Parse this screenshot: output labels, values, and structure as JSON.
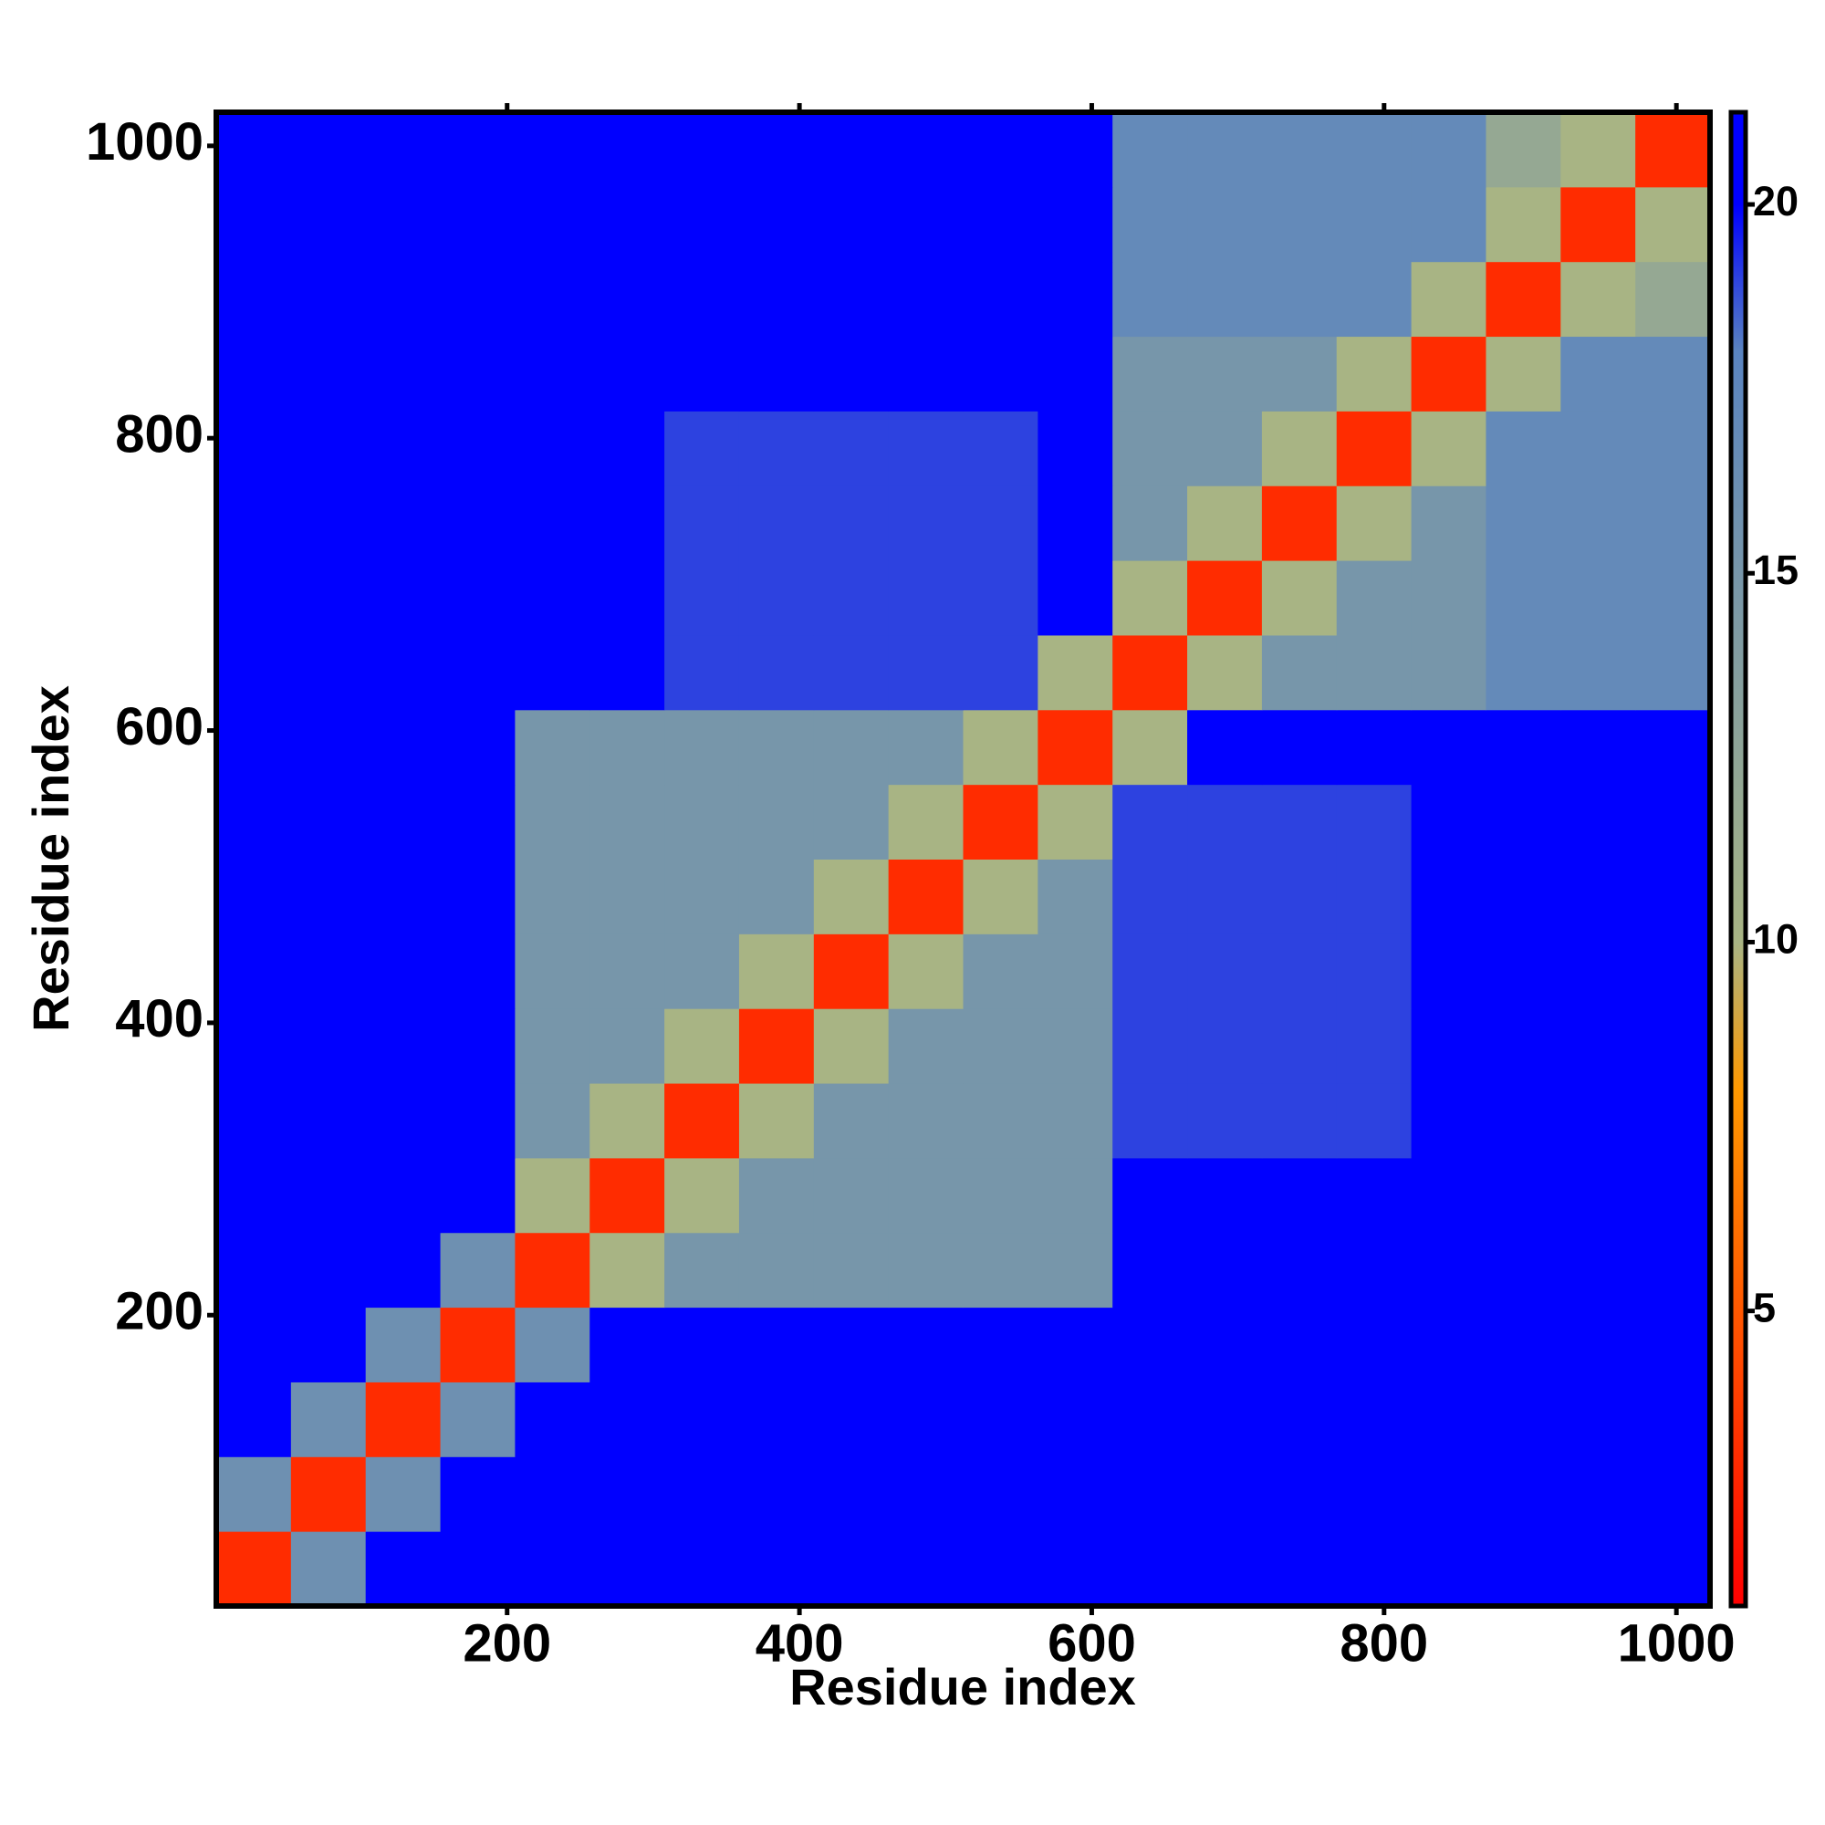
{
  "chart_data": {
    "type": "heatmap",
    "xlabel": "Residue index",
    "ylabel": "Residue index",
    "x_edges": [
      1,
      52.1,
      103.2,
      154.3,
      205.4,
      256.5,
      307.6,
      358.7,
      409.8,
      460.9,
      512,
      563.1,
      614.2,
      665.3,
      716.4,
      767.5,
      818.6,
      869.7,
      920.8,
      971.9,
      1023
    ],
    "y_edges": [
      1,
      52.1,
      103.2,
      154.3,
      205.4,
      256.5,
      307.6,
      358.7,
      409.8,
      460.9,
      512,
      563.1,
      614.2,
      665.3,
      716.4,
      767.5,
      818.6,
      869.7,
      920.8,
      971.9,
      1023
    ],
    "z": [
      [
        3,
        16,
        21,
        21,
        21,
        21,
        21,
        21,
        21,
        21,
        21,
        21,
        21,
        21,
        21,
        21,
        21,
        21,
        21,
        21
      ],
      [
        16,
        3,
        16,
        21,
        21,
        21,
        21,
        21,
        21,
        21,
        21,
        21,
        21,
        21,
        21,
        21,
        21,
        21,
        21,
        21
      ],
      [
        21,
        16,
        3,
        16,
        21,
        21,
        21,
        21,
        21,
        21,
        21,
        21,
        21,
        21,
        21,
        21,
        21,
        21,
        21,
        21
      ],
      [
        21,
        21,
        16,
        3,
        16,
        21,
        21,
        21,
        21,
        21,
        21,
        21,
        21,
        21,
        21,
        21,
        21,
        21,
        21,
        21
      ],
      [
        21,
        21,
        21,
        16,
        3,
        10,
        15,
        15,
        15,
        15,
        15,
        15,
        21,
        21,
        21,
        21,
        21,
        21,
        21,
        21
      ],
      [
        21,
        21,
        21,
        21,
        10,
        3,
        10,
        15,
        15,
        15,
        15,
        15,
        21,
        21,
        21,
        21,
        21,
        21,
        21,
        21
      ],
      [
        21,
        21,
        21,
        21,
        15,
        10,
        3,
        10,
        15,
        15,
        15,
        15,
        19,
        19,
        19,
        19,
        21,
        21,
        21,
        21
      ],
      [
        21,
        21,
        21,
        21,
        15,
        15,
        10,
        3,
        10,
        15,
        15,
        15,
        19,
        19,
        19,
        19,
        21,
        21,
        21,
        21
      ],
      [
        21,
        21,
        21,
        21,
        15,
        15,
        15,
        10,
        3,
        10,
        15,
        15,
        19,
        19,
        19,
        19,
        21,
        21,
        21,
        21
      ],
      [
        21,
        21,
        21,
        21,
        15,
        15,
        15,
        15,
        10,
        3,
        10,
        15,
        19,
        19,
        19,
        19,
        21,
        21,
        21,
        21
      ],
      [
        21,
        21,
        21,
        21,
        15,
        15,
        15,
        15,
        15,
        10,
        3,
        10,
        19,
        19,
        19,
        19,
        21,
        21,
        21,
        21
      ],
      [
        21,
        21,
        21,
        21,
        15,
        15,
        15,
        15,
        15,
        15,
        10,
        3,
        10,
        21,
        21,
        21,
        21,
        21,
        21,
        21
      ],
      [
        21,
        21,
        21,
        21,
        21,
        21,
        19,
        19,
        19,
        19,
        19,
        10,
        3,
        10,
        15,
        15,
        15,
        17,
        17,
        17
      ],
      [
        21,
        21,
        21,
        21,
        21,
        21,
        19,
        19,
        19,
        19,
        19,
        21,
        10,
        3,
        10,
        15,
        15,
        17,
        17,
        17
      ],
      [
        21,
        21,
        21,
        21,
        21,
        21,
        19,
        19,
        19,
        19,
        19,
        21,
        15,
        10,
        3,
        10,
        15,
        17,
        17,
        17
      ],
      [
        21,
        21,
        21,
        21,
        21,
        21,
        19,
        19,
        19,
        19,
        19,
        21,
        15,
        15,
        10,
        3,
        10,
        17,
        17,
        17
      ],
      [
        21,
        21,
        21,
        21,
        21,
        21,
        21,
        21,
        21,
        21,
        21,
        21,
        15,
        15,
        15,
        10,
        3,
        10,
        17,
        17
      ],
      [
        21,
        21,
        21,
        21,
        21,
        21,
        21,
        21,
        21,
        21,
        21,
        21,
        17,
        17,
        17,
        17,
        10,
        3,
        10,
        12
      ],
      [
        21,
        21,
        21,
        21,
        21,
        21,
        21,
        21,
        21,
        21,
        21,
        21,
        17,
        17,
        17,
        17,
        17,
        10,
        3,
        10
      ],
      [
        21,
        21,
        21,
        21,
        21,
        21,
        21,
        21,
        21,
        21,
        21,
        21,
        17,
        17,
        17,
        17,
        17,
        12,
        10,
        3
      ]
    ],
    "xlim": [
      1,
      1023
    ],
    "ylim": [
      1,
      1023
    ],
    "xticks": [
      200,
      400,
      600,
      800,
      1000
    ],
    "yticks": [
      200,
      400,
      600,
      800,
      1000
    ],
    "zlim": [
      1,
      21.25
    ],
    "zticks": [
      5,
      10,
      15,
      20
    ],
    "colorscale": [
      [
        1,
        "#ff0000"
      ],
      [
        8,
        "#ff9900"
      ],
      [
        10,
        "#a8b484"
      ],
      [
        18,
        "#5a84c0"
      ],
      [
        20,
        "#0000ff"
      ]
    ]
  }
}
